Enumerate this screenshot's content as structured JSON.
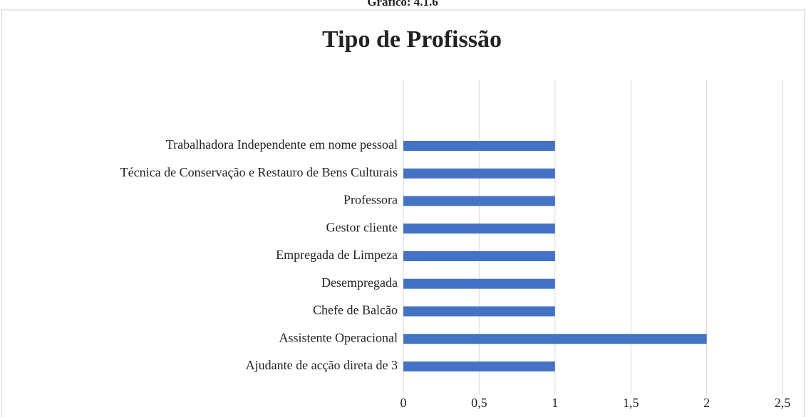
{
  "header": "Gráfico: 4.1.6",
  "chart_data": {
    "type": "bar",
    "orientation": "horizontal",
    "title": "Tipo de Profissão",
    "categories": [
      "Ajudante de acção direta de 3",
      "Assistente Operacional",
      "Chefe de Balcão",
      "Desempregada",
      "Empregada de Limpeza",
      "Gestor cliente",
      "Professora",
      "Técnica de Conservação e Restauro de Bens Culturais",
      "Trabalhadora Independente em nome pessoal"
    ],
    "values": [
      1,
      2,
      1,
      1,
      1,
      1,
      1,
      1,
      1
    ],
    "color": "#4472c4",
    "xlim": [
      0,
      2.5
    ],
    "xticks": [
      0,
      {
        "value": 0.5,
        "label": "0,5"
      },
      1,
      {
        "value": 1.5,
        "label": "1,5"
      },
      2,
      {
        "value": 2.5,
        "label": "2,5"
      }
    ],
    "grid": true
  }
}
